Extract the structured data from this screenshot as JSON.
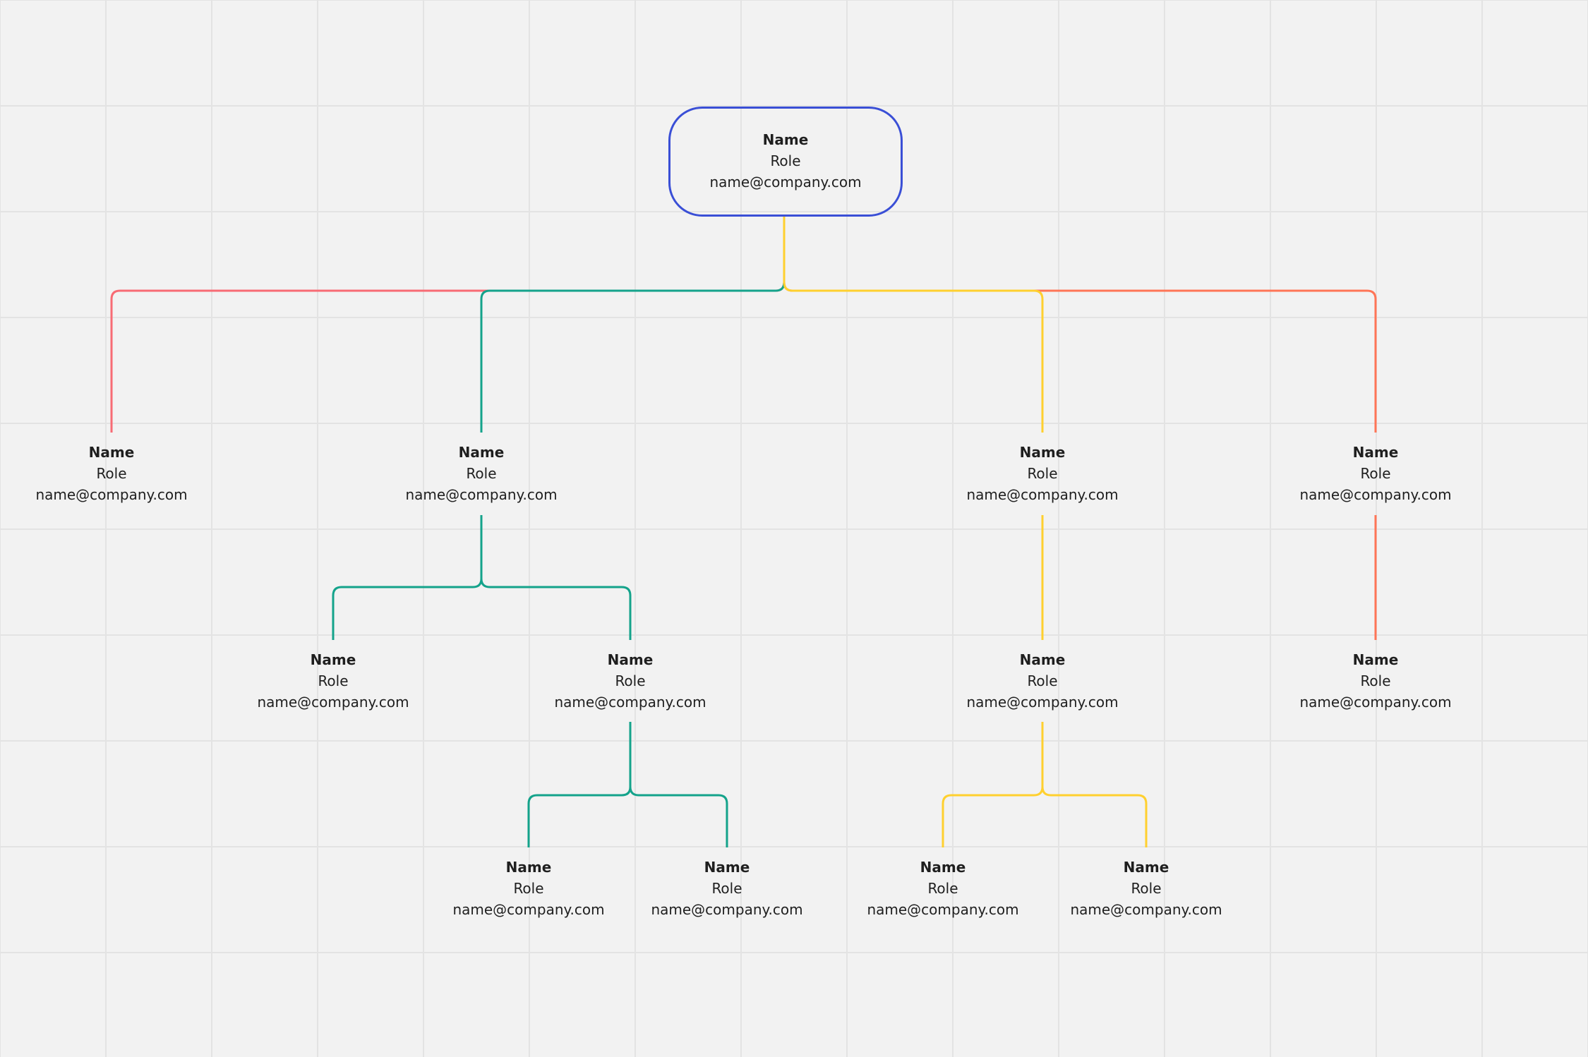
{
  "colors": {
    "background": "#f2f2f2",
    "grid": "#e3e3e3",
    "root_border": "#3a4fd6",
    "red": "#f86b74",
    "teal": "#14a38b",
    "yellow": "#ffd02f",
    "orange": "#ff7557"
  },
  "nodes": [
    {
      "id": "root",
      "parent": null,
      "name": "Name",
      "role": "Role",
      "email": "name@company.com"
    },
    {
      "id": "a",
      "parent": "root",
      "color": "red",
      "name": "Name",
      "role": "Role",
      "email": "name@company.com"
    },
    {
      "id": "b",
      "parent": "root",
      "color": "teal",
      "name": "Name",
      "role": "Role",
      "email": "name@company.com"
    },
    {
      "id": "c",
      "parent": "root",
      "color": "yellow",
      "name": "Name",
      "role": "Role",
      "email": "name@company.com"
    },
    {
      "id": "d",
      "parent": "root",
      "color": "orange",
      "name": "Name",
      "role": "Role",
      "email": "name@company.com"
    },
    {
      "id": "b1",
      "parent": "b",
      "color": "teal",
      "name": "Name",
      "role": "Role",
      "email": "name@company.com"
    },
    {
      "id": "b2",
      "parent": "b",
      "color": "teal",
      "name": "Name",
      "role": "Role",
      "email": "name@company.com"
    },
    {
      "id": "c1",
      "parent": "c",
      "color": "yellow",
      "name": "Name",
      "role": "Role",
      "email": "name@company.com"
    },
    {
      "id": "d1",
      "parent": "d",
      "color": "orange",
      "name": "Name",
      "role": "Role",
      "email": "name@company.com"
    },
    {
      "id": "b2a",
      "parent": "b2",
      "color": "teal",
      "name": "Name",
      "role": "Role",
      "email": "name@company.com"
    },
    {
      "id": "b2b",
      "parent": "b2",
      "color": "teal",
      "name": "Name",
      "role": "Role",
      "email": "name@company.com"
    },
    {
      "id": "c1a",
      "parent": "c1",
      "color": "yellow",
      "name": "Name",
      "role": "Role",
      "email": "name@company.com"
    },
    {
      "id": "c1b",
      "parent": "c1",
      "color": "yellow",
      "name": "Name",
      "role": "Role",
      "email": "name@company.com"
    }
  ]
}
